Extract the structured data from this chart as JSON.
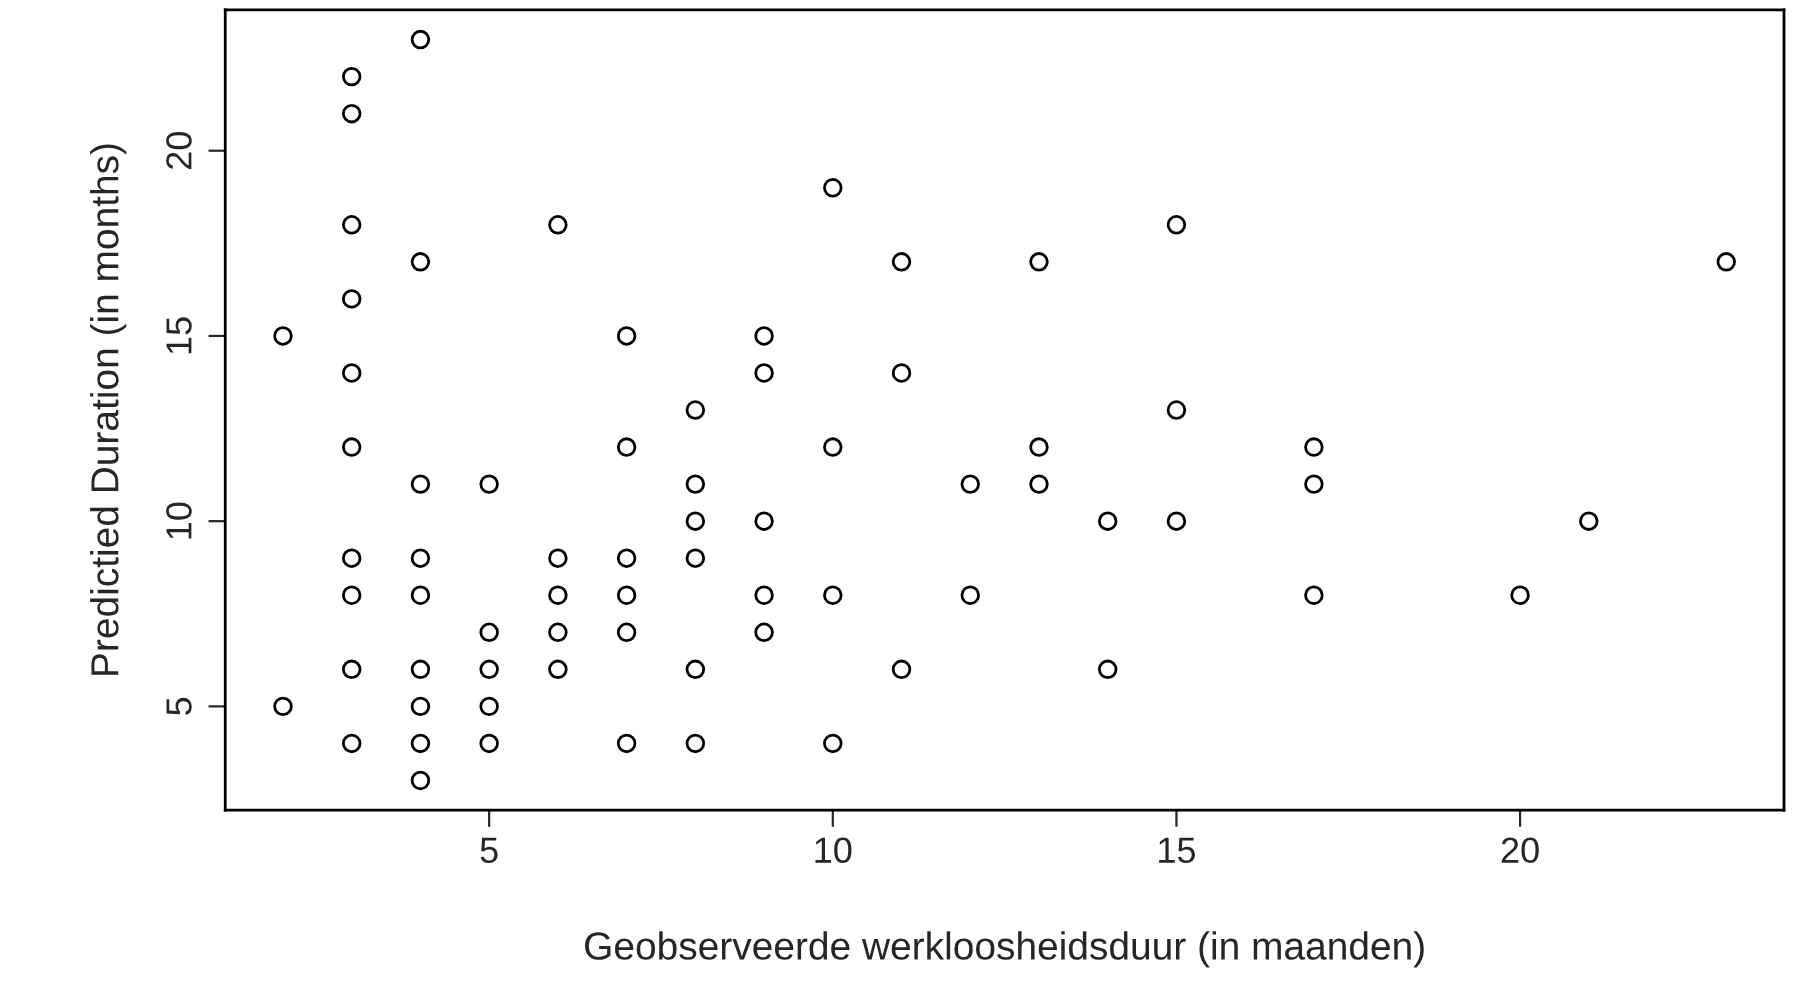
{
  "chart_data": {
    "type": "scatter",
    "xlabel": "Geobserveerde werkloosheidsduur (in maanden)",
    "ylabel": "Predictied Duration (in months)",
    "x": [
      2,
      2,
      3,
      3,
      3,
      3,
      3,
      3,
      3,
      3,
      3,
      3,
      4,
      4,
      4,
      4,
      4,
      4,
      4,
      4,
      4,
      5,
      5,
      5,
      5,
      5,
      6,
      6,
      6,
      6,
      6,
      7,
      7,
      7,
      7,
      7,
      7,
      8,
      8,
      8,
      8,
      8,
      8,
      9,
      9,
      9,
      9,
      9,
      10,
      10,
      10,
      10,
      11,
      11,
      11,
      12,
      12,
      13,
      13,
      13,
      14,
      14,
      15,
      15,
      15,
      17,
      17,
      17,
      20,
      21,
      23
    ],
    "values": [
      15,
      5,
      22,
      21,
      18,
      16,
      14,
      12,
      9,
      8,
      6,
      4,
      23,
      17,
      11,
      9,
      8,
      6,
      5,
      4,
      3,
      11,
      7,
      6,
      5,
      4,
      18,
      9,
      8,
      7,
      6,
      15,
      12,
      9,
      8,
      7,
      4,
      13,
      11,
      10,
      9,
      6,
      4,
      15,
      14,
      10,
      8,
      7,
      19,
      12,
      8,
      4,
      17,
      14,
      6,
      11,
      8,
      17,
      12,
      11,
      10,
      6,
      18,
      13,
      10,
      12,
      11,
      8,
      8,
      10,
      17
    ],
    "color": "#000000",
    "marker": "circle",
    "grid": false,
    "xlim": [
      1.16,
      23.84
    ],
    "ylim": [
      2.2,
      23.8
    ],
    "xticks": [
      5,
      10,
      15,
      20
    ],
    "yticks": [
      5,
      10,
      15,
      20
    ]
  }
}
